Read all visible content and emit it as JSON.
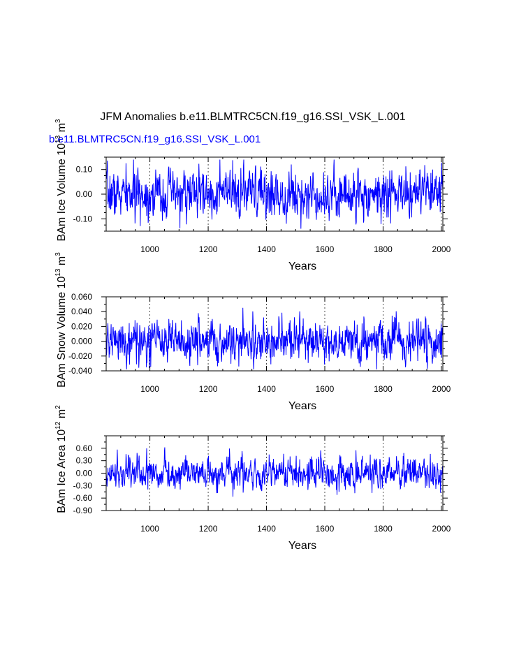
{
  "figure": {
    "title": "JFM Anomalies b.e11.BLMTRC5CN.f19_g16.SSI_VSK_L.001",
    "subtitle": "b.e11.BLMTRC5CN.f19_g16.SSI_VSK_L.001",
    "colors": {
      "series": "#0000ff",
      "axes": "#000000",
      "background": "#ffffff"
    }
  },
  "chart_data": [
    {
      "type": "line",
      "id": "ice-volume",
      "ylabel": "BAm Ice Volume 10",
      "ylabel_exp": "13",
      "ylabel_unit": " m",
      "ylabel_unit_exp": "3",
      "xlabel": "Years",
      "xlim": [
        850,
        2005
      ],
      "ylim": [
        -0.15,
        0.15
      ],
      "xticks": [
        1000,
        1200,
        1400,
        1600,
        1800,
        2000
      ],
      "yticks": [
        -0.1,
        0.0,
        0.1
      ],
      "ytick_labels": [
        "-0.10",
        "0.00",
        "0.10"
      ],
      "x_minor_step": 50,
      "y_minor_step": 0.025,
      "grid": "dotted vertical lines at labeled x ticks",
      "x_start": 850,
      "x_end": 2005,
      "amplitude": 0.045,
      "peak_range": [
        -0.14,
        0.14
      ],
      "series": [
        {
          "name": "",
          "color": "#0000ff"
        }
      ]
    },
    {
      "type": "line",
      "id": "snow-volume",
      "ylabel": "BAm Snow Volume 10",
      "ylabel_exp": "13",
      "ylabel_unit": " m",
      "ylabel_unit_exp": "3",
      "xlabel": "Years",
      "xlim": [
        850,
        2005
      ],
      "ylim": [
        -0.04,
        0.06
      ],
      "xticks": [
        1000,
        1200,
        1400,
        1600,
        1800,
        2000
      ],
      "yticks": [
        -0.04,
        -0.02,
        0.0,
        0.02,
        0.04,
        0.06
      ],
      "ytick_labels": [
        "-0.040",
        "-0.020",
        "0.000",
        "0.020",
        "0.040",
        "0.060"
      ],
      "x_minor_step": 50,
      "y_minor_step": 0.01,
      "grid": "dotted vertical lines at labeled x ticks",
      "x_start": 850,
      "x_end": 2005,
      "amplitude": 0.013,
      "peak_range": [
        -0.038,
        0.048
      ],
      "series": [
        {
          "name": "",
          "color": "#0000ff"
        }
      ]
    },
    {
      "type": "line",
      "id": "ice-area",
      "ylabel": "BAm Ice Area 10",
      "ylabel_exp": "12",
      "ylabel_unit": " m",
      "ylabel_unit_exp": "2",
      "xlabel": "Years",
      "xlim": [
        850,
        2005
      ],
      "ylim": [
        -0.9,
        0.9
      ],
      "xticks": [
        1000,
        1200,
        1400,
        1600,
        1800,
        2000
      ],
      "yticks": [
        -0.9,
        -0.6,
        -0.3,
        0.0,
        0.3,
        0.6
      ],
      "ytick_labels": [
        "-0.90",
        "-0.60",
        "-0.30",
        "0.00",
        "0.30",
        "0.60"
      ],
      "x_minor_step": 50,
      "y_minor_step": 0.15,
      "grid": "dotted vertical lines at labeled x ticks",
      "x_start": 850,
      "x_end": 2005,
      "amplitude": 0.17,
      "peak_range": [
        -0.68,
        0.65
      ],
      "series": [
        {
          "name": "",
          "color": "#0000ff"
        }
      ]
    }
  ]
}
